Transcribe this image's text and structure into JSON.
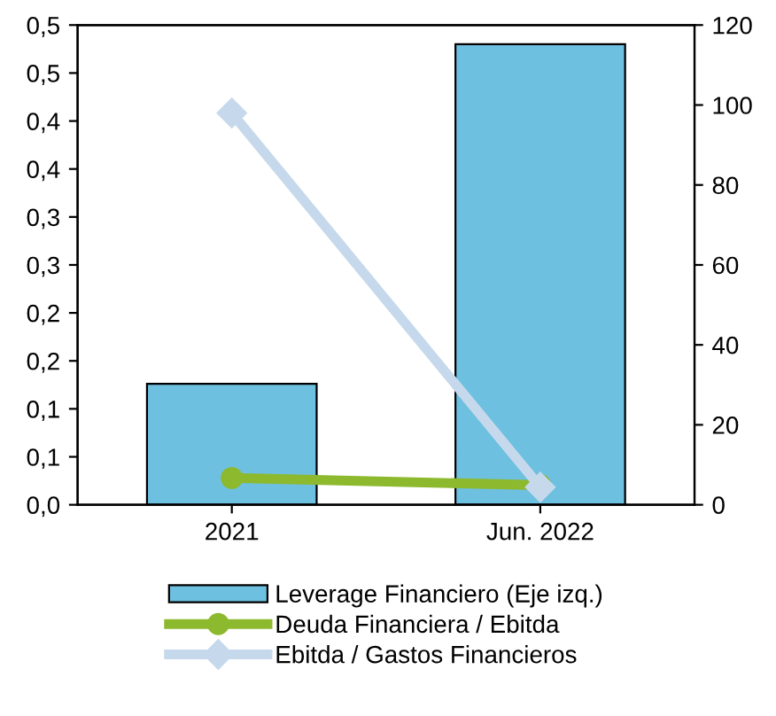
{
  "chart_data": {
    "type": "bar",
    "categories": [
      "2021",
      "Jun. 2022"
    ],
    "series": [
      {
        "name": "Leverage Financiero (Eje izq.)",
        "color": "#6ec0e0",
        "values": [
          0.126,
          0.48
        ]
      },
      {
        "name": "Deuda Financiera / Ebitda",
        "color": "#8db92e",
        "values": [
          6.7,
          4.9
        ],
        "type": "line",
        "axis": "y2",
        "marker": "circle"
      },
      {
        "name": "Ebitda / Gastos Financieros",
        "color": "#c6d9ec",
        "values": [
          98,
          4.4
        ],
        "type": "line",
        "axis": "y2",
        "marker": "diamond"
      }
    ],
    "ylim": [
      0,
      0.5
    ],
    "yticks": [
      {
        "value": 0,
        "label": "0,0"
      },
      {
        "value": 0.05,
        "label": "0,1"
      },
      {
        "value": 0.1,
        "label": "0,1"
      },
      {
        "value": 0.15,
        "label": "0,2"
      },
      {
        "value": 0.2,
        "label": "0,2"
      },
      {
        "value": 0.25,
        "label": "0,3"
      },
      {
        "value": 0.3,
        "label": "0,3"
      },
      {
        "value": 0.35,
        "label": "0,4"
      },
      {
        "value": 0.4,
        "label": "0,4"
      },
      {
        "value": 0.45,
        "label": "0,5"
      },
      {
        "value": 0.5,
        "label": "0,5"
      }
    ],
    "y2lim": [
      0,
      120
    ],
    "y2ticks": [
      0,
      20,
      40,
      60,
      80,
      100,
      120
    ],
    "legend": "bottom",
    "grid": false
  }
}
